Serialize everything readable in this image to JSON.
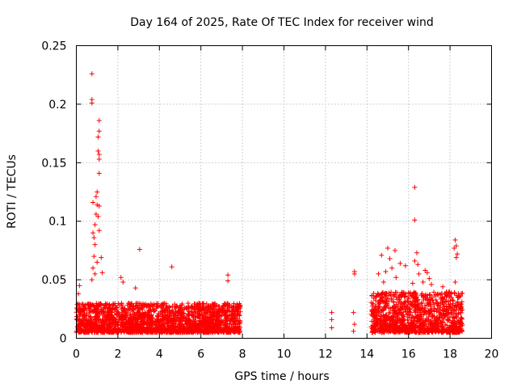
{
  "chart_data": {
    "type": "scatter",
    "title": "Day 164 of 2025, Rate Of TEC Index for receiver wind",
    "xlabel": "GPS time / hours",
    "ylabel": "ROTI / TECUs",
    "xlim": [
      0,
      20
    ],
    "ylim": [
      0,
      0.25
    ],
    "xticks": [
      0,
      2,
      4,
      6,
      8,
      10,
      12,
      14,
      16,
      18,
      20
    ],
    "xtick_labels": [
      "0",
      "2",
      "4",
      "6",
      "8",
      "10",
      "12",
      "14",
      "16",
      "18",
      "20"
    ],
    "yticks": [
      0,
      0.05,
      0.1,
      0.15,
      0.2,
      0.25
    ],
    "ytick_labels": [
      "0",
      "0.05",
      "0.1",
      "0.15",
      "0.2",
      "0.25"
    ],
    "grid": true,
    "marker": "+",
    "color": "#ff0000",
    "dense_bands": [
      {
        "x_start": 0.0,
        "x_end": 7.9,
        "y_low": 0.005,
        "y_high": 0.03
      },
      {
        "x_start": 14.2,
        "x_end": 18.6,
        "y_low": 0.005,
        "y_high": 0.04
      }
    ],
    "outliers": [
      {
        "x": 0.75,
        "y": 0.226
      },
      {
        "x": 0.75,
        "y": 0.204
      },
      {
        "x": 0.75,
        "y": 0.201
      },
      {
        "x": 1.1,
        "y": 0.186
      },
      {
        "x": 1.1,
        "y": 0.177
      },
      {
        "x": 1.05,
        "y": 0.172
      },
      {
        "x": 1.05,
        "y": 0.16
      },
      {
        "x": 1.1,
        "y": 0.157
      },
      {
        "x": 1.1,
        "y": 0.153
      },
      {
        "x": 1.1,
        "y": 0.141
      },
      {
        "x": 1.0,
        "y": 0.125
      },
      {
        "x": 0.95,
        "y": 0.121
      },
      {
        "x": 1.0,
        "y": 0.114
      },
      {
        "x": 1.1,
        "y": 0.113
      },
      {
        "x": 0.8,
        "y": 0.116
      },
      {
        "x": 0.95,
        "y": 0.106
      },
      {
        "x": 1.05,
        "y": 0.104
      },
      {
        "x": 0.9,
        "y": 0.097
      },
      {
        "x": 0.8,
        "y": 0.09
      },
      {
        "x": 0.85,
        "y": 0.086
      },
      {
        "x": 1.1,
        "y": 0.092
      },
      {
        "x": 0.9,
        "y": 0.08
      },
      {
        "x": 0.85,
        "y": 0.07
      },
      {
        "x": 1.0,
        "y": 0.065
      },
      {
        "x": 1.2,
        "y": 0.069
      },
      {
        "x": 1.25,
        "y": 0.056
      },
      {
        "x": 0.8,
        "y": 0.06
      },
      {
        "x": 0.9,
        "y": 0.055
      },
      {
        "x": 0.75,
        "y": 0.05
      },
      {
        "x": 3.05,
        "y": 0.076
      },
      {
        "x": 4.6,
        "y": 0.061
      },
      {
        "x": 2.15,
        "y": 0.052
      },
      {
        "x": 2.25,
        "y": 0.048
      },
      {
        "x": 2.85,
        "y": 0.043
      },
      {
        "x": 7.3,
        "y": 0.054
      },
      {
        "x": 7.3,
        "y": 0.049
      },
      {
        "x": 0.15,
        "y": 0.045
      },
      {
        "x": 0.1,
        "y": 0.038
      },
      {
        "x": 12.3,
        "y": 0.022
      },
      {
        "x": 12.3,
        "y": 0.016
      },
      {
        "x": 12.3,
        "y": 0.009
      },
      {
        "x": 13.4,
        "y": 0.057
      },
      {
        "x": 13.4,
        "y": 0.055
      },
      {
        "x": 13.35,
        "y": 0.022
      },
      {
        "x": 13.4,
        "y": 0.012
      },
      {
        "x": 13.35,
        "y": 0.006
      },
      {
        "x": 16.3,
        "y": 0.129
      },
      {
        "x": 16.3,
        "y": 0.101
      },
      {
        "x": 16.4,
        "y": 0.073
      },
      {
        "x": 16.3,
        "y": 0.066
      },
      {
        "x": 16.45,
        "y": 0.063
      },
      {
        "x": 16.5,
        "y": 0.055
      },
      {
        "x": 16.2,
        "y": 0.047
      },
      {
        "x": 15.0,
        "y": 0.077
      },
      {
        "x": 15.35,
        "y": 0.075
      },
      {
        "x": 14.7,
        "y": 0.071
      },
      {
        "x": 15.1,
        "y": 0.068
      },
      {
        "x": 15.2,
        "y": 0.06
      },
      {
        "x": 14.9,
        "y": 0.057
      },
      {
        "x": 15.6,
        "y": 0.064
      },
      {
        "x": 15.85,
        "y": 0.062
      },
      {
        "x": 14.55,
        "y": 0.055
      },
      {
        "x": 15.4,
        "y": 0.052
      },
      {
        "x": 14.8,
        "y": 0.048
      },
      {
        "x": 16.9,
        "y": 0.056
      },
      {
        "x": 17.0,
        "y": 0.051
      },
      {
        "x": 17.1,
        "y": 0.046
      },
      {
        "x": 16.8,
        "y": 0.058
      },
      {
        "x": 16.7,
        "y": 0.048
      },
      {
        "x": 18.25,
        "y": 0.084
      },
      {
        "x": 18.3,
        "y": 0.079
      },
      {
        "x": 18.2,
        "y": 0.077
      },
      {
        "x": 18.35,
        "y": 0.072
      },
      {
        "x": 18.3,
        "y": 0.069
      },
      {
        "x": 18.25,
        "y": 0.048
      },
      {
        "x": 17.65,
        "y": 0.044
      },
      {
        "x": 18.5,
        "y": 0.036
      }
    ]
  }
}
